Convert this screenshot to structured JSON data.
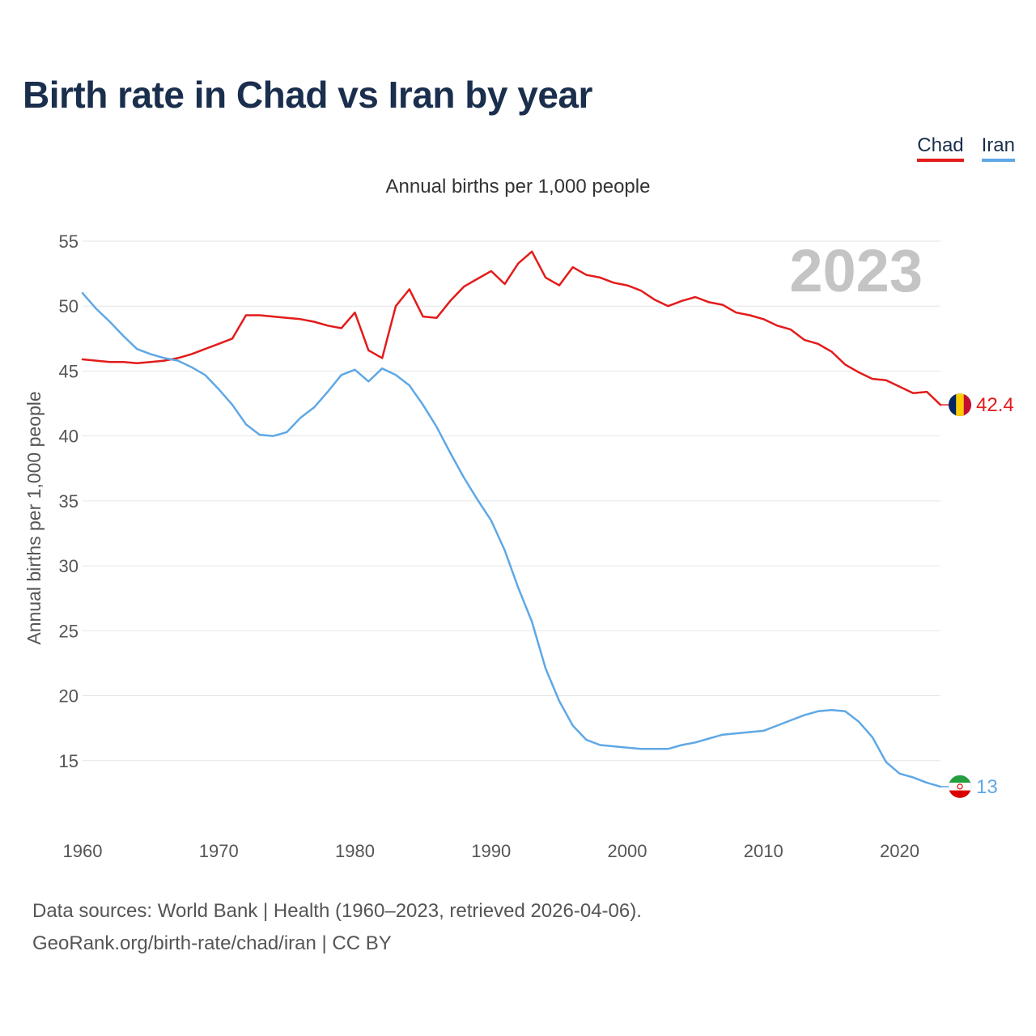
{
  "chart_data": {
    "type": "line",
    "title": "Birth rate in Chad vs Iran by year",
    "subtitle": "Annual births per 1,000 people",
    "ylabel": "Annual births per 1,000 people",
    "xlabel": "",
    "year_watermark": "2023",
    "xlim": [
      1960,
      2023
    ],
    "ylim": [
      10,
      55
    ],
    "yticks": [
      15,
      20,
      25,
      30,
      35,
      40,
      45,
      50,
      55
    ],
    "xticks": [
      1960,
      1970,
      1980,
      1990,
      2000,
      2010,
      2020
    ],
    "grid": true,
    "legend_position": "top-right",
    "series": [
      {
        "name": "Chad",
        "color": "#e31b1b",
        "end_label": "42.4",
        "flag": "chad-flag-icon",
        "x": [
          1960,
          1961,
          1962,
          1963,
          1964,
          1965,
          1966,
          1967,
          1968,
          1969,
          1970,
          1971,
          1972,
          1973,
          1974,
          1975,
          1976,
          1977,
          1978,
          1979,
          1980,
          1981,
          1982,
          1983,
          1984,
          1985,
          1986,
          1987,
          1988,
          1989,
          1990,
          1991,
          1992,
          1993,
          1994,
          1995,
          1996,
          1997,
          1998,
          1999,
          2000,
          2001,
          2002,
          2003,
          2004,
          2005,
          2006,
          2007,
          2008,
          2009,
          2010,
          2011,
          2012,
          2013,
          2014,
          2015,
          2016,
          2017,
          2018,
          2019,
          2020,
          2021,
          2022,
          2023
        ],
        "values": [
          45.9,
          45.8,
          45.7,
          45.7,
          45.6,
          45.7,
          45.8,
          46.0,
          46.3,
          46.7,
          47.1,
          47.5,
          49.3,
          49.3,
          49.2,
          49.1,
          49.0,
          48.8,
          48.5,
          48.3,
          49.5,
          46.6,
          46.0,
          50.0,
          51.3,
          49.2,
          49.1,
          50.4,
          51.5,
          52.1,
          52.7,
          51.7,
          53.3,
          54.2,
          52.2,
          51.6,
          53.0,
          52.4,
          52.2,
          51.8,
          51.6,
          51.2,
          50.5,
          50.0,
          50.4,
          50.7,
          50.3,
          50.1,
          49.5,
          49.3,
          49.0,
          48.5,
          48.2,
          47.4,
          47.1,
          46.5,
          45.5,
          44.9,
          44.4,
          44.3,
          43.8,
          43.3,
          43.4,
          42.4
        ]
      },
      {
        "name": "Iran",
        "color": "#5fa8e6",
        "end_label": "13",
        "flag": "iran-flag-icon",
        "x": [
          1960,
          1961,
          1962,
          1963,
          1964,
          1965,
          1966,
          1967,
          1968,
          1969,
          1970,
          1971,
          1972,
          1973,
          1974,
          1975,
          1976,
          1977,
          1978,
          1979,
          1980,
          1981,
          1982,
          1983,
          1984,
          1985,
          1986,
          1987,
          1988,
          1989,
          1990,
          1991,
          1992,
          1993,
          1994,
          1995,
          1996,
          1997,
          1998,
          1999,
          2000,
          2001,
          2002,
          2003,
          2004,
          2005,
          2006,
          2007,
          2008,
          2009,
          2010,
          2011,
          2012,
          2013,
          2014,
          2015,
          2016,
          2017,
          2018,
          2019,
          2020,
          2021,
          2022,
          2023
        ],
        "values": [
          51.0,
          49.8,
          48.8,
          47.7,
          46.7,
          46.3,
          46.0,
          45.8,
          45.3,
          44.7,
          43.6,
          42.4,
          40.9,
          40.1,
          40.0,
          40.3,
          41.4,
          42.2,
          43.4,
          44.7,
          45.1,
          44.2,
          45.2,
          44.7,
          43.9,
          42.4,
          40.7,
          38.7,
          36.8,
          35.1,
          33.5,
          31.2,
          28.3,
          25.7,
          22.1,
          19.6,
          17.7,
          16.6,
          16.2,
          16.1,
          16.0,
          15.9,
          15.9,
          15.9,
          16.2,
          16.4,
          16.7,
          17.0,
          17.1,
          17.2,
          17.3,
          17.7,
          18.1,
          18.5,
          18.8,
          18.9,
          18.8,
          18.0,
          16.8,
          14.9,
          14.0,
          13.7,
          13.3,
          13.0
        ]
      }
    ]
  },
  "source": {
    "line1": "Data sources: World Bank | Health (1960–2023, retrieved 2026-04-06).",
    "line2": "GeoRank.org/birth-rate/chad/iran | CC BY"
  }
}
